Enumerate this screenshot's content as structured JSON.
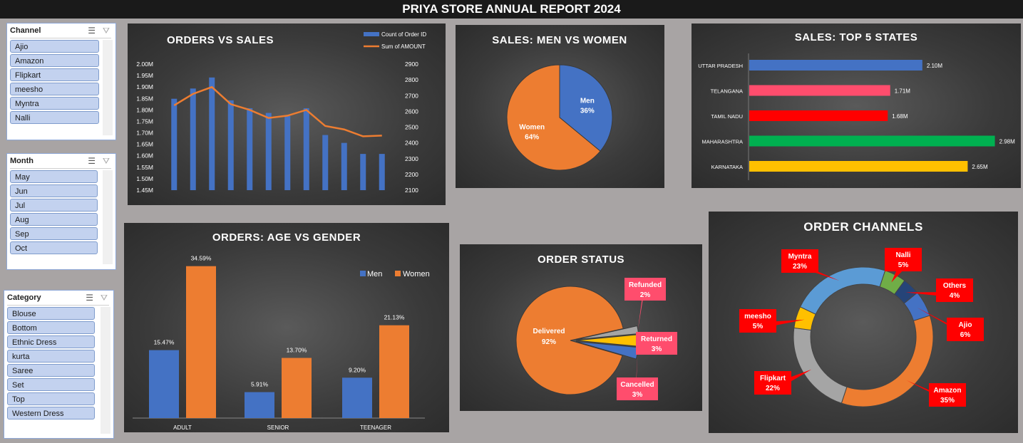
{
  "report_title": "PRIYA STORE ANNUAL REPORT 2024",
  "slicers": {
    "channel": {
      "title": "Channel",
      "items": [
        "Ajio",
        "Amazon",
        "Flipkart",
        "meesho",
        "Myntra",
        "Nalli"
      ]
    },
    "month": {
      "title": "Month",
      "items": [
        "May",
        "Jun",
        "Jul",
        "Aug",
        "Sep",
        "Oct"
      ]
    },
    "category": {
      "title": "Category",
      "items": [
        "Blouse",
        "Bottom",
        "Ethnic Dress",
        "kurta",
        "Saree",
        "Set",
        "Top",
        "Western Dress"
      ]
    }
  },
  "colors": {
    "blue": "#4472c4",
    "orange": "#ed7d31",
    "gray": "#a5a5a5",
    "yellow": "#ffc000",
    "green": "#70ad47",
    "pink": "#ff4d6d",
    "red": "#ff0000",
    "darkgreen": "#00b050",
    "navy": "#264478",
    "callout_red": "#ff0000",
    "callout_pink": "#ff4d6d"
  },
  "chart_data": [
    {
      "id": "orders_vs_sales",
      "type": "bar",
      "title": "ORDERS VS SALES",
      "legend": [
        "Count of Order ID",
        "Sum of AMOUNT"
      ],
      "legend_position": "top-right",
      "y_left_ticks": [
        "2.00M",
        "1.95M",
        "1.90M",
        "1.85M",
        "1.80M",
        "1.75M",
        "1.70M",
        "1.65M",
        "1.60M",
        "1.55M",
        "1.50M",
        "1.45M"
      ],
      "y_right_ticks": [
        "2900",
        "2800",
        "2700",
        "2600",
        "2500",
        "2400",
        "2300",
        "2200",
        "2100"
      ],
      "ylim_left": [
        1450000,
        2000000
      ],
      "ylim_right": [
        2100,
        2900
      ],
      "series": [
        {
          "name": "Count of Order ID",
          "type": "bar",
          "axis": "right",
          "values": [
            2680,
            2745,
            2815,
            2670,
            2620,
            2590,
            2570,
            2620,
            2450,
            2400,
            2330,
            2330
          ]
        },
        {
          "name": "Sum of AMOUNT",
          "type": "line",
          "axis": "left",
          "values": [
            1820000,
            1870000,
            1900000,
            1825000,
            1800000,
            1765000,
            1775000,
            1800000,
            1730000,
            1715000,
            1685000,
            1688000
          ]
        }
      ]
    },
    {
      "id": "sales_men_women",
      "type": "pie",
      "title": "SALES: MEN VS WOMEN",
      "labels": [
        "Men",
        "Women"
      ],
      "values": [
        36,
        64
      ],
      "value_labels": [
        "36%",
        "64%"
      ]
    },
    {
      "id": "top5_states",
      "type": "bar",
      "orientation": "horizontal",
      "title": "SALES: TOP 5 STATES",
      "categories": [
        "UTTAR PRADESH",
        "TELANGANA",
        "TAMIL NADU",
        "MAHARASHTRA",
        "KARNATAKA"
      ],
      "values": [
        2.1,
        1.71,
        1.68,
        2.98,
        2.65
      ],
      "value_labels": [
        "2.10M",
        "1.71M",
        "1.68M",
        "2.98M",
        "2.65M"
      ],
      "xlim": [
        0,
        3.2
      ]
    },
    {
      "id": "age_vs_gender",
      "type": "bar",
      "title": "ORDERS: AGE VS GENDER",
      "categories": [
        "ADULT",
        "SENIOR",
        "TEENAGER"
      ],
      "legend_position": "top-right",
      "series": [
        {
          "name": "Men",
          "values": [
            15.47,
            5.91,
            9.2
          ],
          "labels": [
            "15.47%",
            "5.91%",
            "9.20%"
          ]
        },
        {
          "name": "Women",
          "values": [
            34.59,
            13.7,
            21.13
          ],
          "labels": [
            "34.59%",
            "13.70%",
            "21.13%"
          ]
        }
      ],
      "ylim": [
        0,
        36
      ]
    },
    {
      "id": "order_status",
      "type": "pie",
      "title": "ORDER STATUS",
      "labels": [
        "Delivered",
        "Refunded",
        "Returned",
        "Cancelled"
      ],
      "values": [
        92,
        2,
        3,
        3
      ],
      "value_labels": [
        "92%",
        "2%",
        "3%",
        "3%"
      ]
    },
    {
      "id": "order_channels",
      "type": "pie",
      "title": "ORDER CHANNELS",
      "labels": [
        "Myntra",
        "Nalli",
        "Others",
        "Ajio",
        "Amazon",
        "Flipkart",
        "meesho"
      ],
      "values": [
        23,
        5,
        4,
        6,
        35,
        22,
        5
      ],
      "value_labels": [
        "23%",
        "5%",
        "4%",
        "6%",
        "35%",
        "22%",
        "5%"
      ]
    }
  ]
}
